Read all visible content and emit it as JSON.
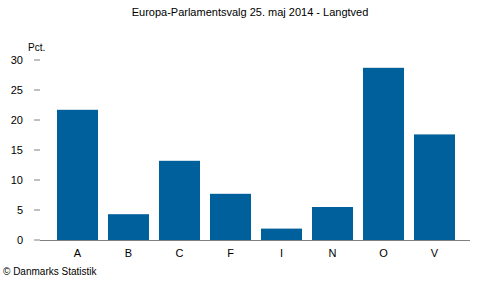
{
  "chart_data": {
    "type": "bar",
    "title": "Europa-Parlamentsvalg 25. maj 2014 - Langtved",
    "y_label": "Pct.",
    "footer": "© Danmarks Statistik",
    "categories": [
      "A",
      "B",
      "C",
      "F",
      "I",
      "N",
      "O",
      "V"
    ],
    "values": [
      21.7,
      4.3,
      13.2,
      7.7,
      1.9,
      5.5,
      28.7,
      17.6
    ],
    "color": "#00609c",
    "ylim": [
      0,
      30
    ],
    "yticks": [
      0,
      5,
      10,
      15,
      20,
      25,
      30
    ],
    "grid": false
  }
}
